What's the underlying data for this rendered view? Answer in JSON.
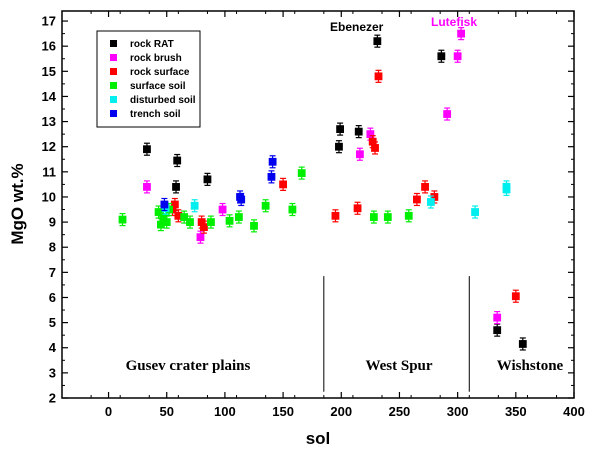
{
  "chart_data": {
    "type": "scatter",
    "xlabel": "sol",
    "ylabel": "MgO wt.%",
    "xlim": [
      -40,
      400
    ],
    "ylim": [
      2,
      17.4
    ],
    "xticks": [
      0,
      50,
      100,
      150,
      200,
      250,
      300,
      350,
      400
    ],
    "yticks": [
      2,
      3,
      4,
      5,
      6,
      7,
      8,
      9,
      10,
      11,
      12,
      13,
      14,
      15,
      16,
      17
    ],
    "legend_position": "top-left",
    "series": [
      {
        "name": "rock RAT",
        "color": "#000000",
        "points": [
          [
            33,
            11.9
          ],
          [
            59,
            11.45
          ],
          [
            58,
            10.4
          ],
          [
            85,
            10.7
          ],
          [
            198,
            12.0
          ],
          [
            199,
            12.7
          ],
          [
            215,
            12.6
          ],
          [
            231,
            16.2
          ],
          [
            286,
            15.6
          ],
          [
            334,
            4.7
          ],
          [
            356,
            4.15
          ]
        ]
      },
      {
        "name": "rock brush",
        "color": "#ff00ff",
        "points": [
          [
            33,
            10.4
          ],
          [
            79,
            8.4
          ],
          [
            98,
            9.5
          ],
          [
            216,
            11.7
          ],
          [
            225,
            12.5
          ],
          [
            291,
            13.3
          ],
          [
            300,
            15.6
          ],
          [
            303,
            16.5
          ],
          [
            334,
            5.2
          ]
        ]
      },
      {
        "name": "rock surface",
        "color": "#ff0000",
        "points": [
          [
            55,
            9.5
          ],
          [
            57,
            9.7
          ],
          [
            60,
            9.25
          ],
          [
            80,
            9.0
          ],
          [
            82,
            8.8
          ],
          [
            150,
            10.5
          ],
          [
            195,
            9.25
          ],
          [
            214,
            9.55
          ],
          [
            227,
            12.2
          ],
          [
            229,
            11.95
          ],
          [
            232,
            14.8
          ],
          [
            265,
            9.9
          ],
          [
            272,
            10.4
          ],
          [
            280,
            10.0
          ],
          [
            350,
            6.05
          ]
        ]
      },
      {
        "name": "surface soil",
        "color": "#00ee00",
        "points": [
          [
            12,
            9.1
          ],
          [
            43,
            9.4
          ],
          [
            45,
            8.9
          ],
          [
            47,
            9.2
          ],
          [
            50,
            9.0
          ],
          [
            52,
            9.5
          ],
          [
            65,
            9.2
          ],
          [
            70,
            9.0
          ],
          [
            88,
            9.0
          ],
          [
            104,
            9.05
          ],
          [
            112,
            9.2
          ],
          [
            125,
            8.85
          ],
          [
            135,
            9.65
          ],
          [
            158,
            9.5
          ],
          [
            166,
            10.95
          ],
          [
            228,
            9.2
          ],
          [
            240,
            9.2
          ],
          [
            258,
            9.25
          ]
        ]
      },
      {
        "name": "disturbed soil",
        "color": "#00eeee",
        "points": [
          [
            49,
            9.55
          ],
          [
            74,
            9.65
          ],
          [
            277,
            9.8
          ],
          [
            315,
            9.4
          ],
          [
            342,
            10.3
          ],
          [
            342,
            10.4
          ]
        ]
      },
      {
        "name": "trench soil",
        "color": "#0000ee",
        "points": [
          [
            48,
            9.7
          ],
          [
            113,
            10.0
          ],
          [
            114,
            9.9
          ],
          [
            140,
            10.8
          ],
          [
            141,
            11.4
          ]
        ]
      }
    ],
    "annotations": [
      {
        "text": "Ebenezer",
        "color": "#000000"
      },
      {
        "text": "Lutefisk",
        "color": "#ff00ff"
      },
      {
        "text": "Gusev crater plains",
        "color": "#000000"
      },
      {
        "text": "West Spur",
        "color": "#000000"
      },
      {
        "text": "Wishstone",
        "color": "#000000"
      }
    ],
    "dividers_x": [
      185,
      310
    ]
  }
}
